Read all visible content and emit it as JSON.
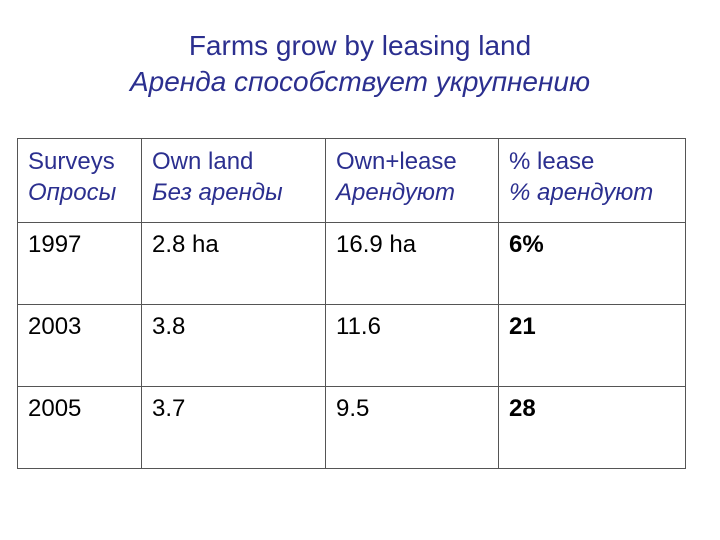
{
  "title": {
    "line1": "Farms grow by leasing land",
    "line2": "Аренда способствует укрупнению"
  },
  "table": {
    "headers": [
      {
        "en": "Surveys",
        "ru": "Опросы"
      },
      {
        "en": "Own land",
        "ru": "Без аренды"
      },
      {
        "en": "Own+lease",
        "ru": "Арендуют"
      },
      {
        "en": "% lease",
        "ru": "% арендуют"
      }
    ],
    "rows": [
      [
        "1997",
        "2.8 ha",
        "16.9 ha",
        "6%"
      ],
      [
        "2003",
        "3.8",
        "11.6",
        "21"
      ],
      [
        "2005",
        "3.7",
        "9.5",
        "28"
      ]
    ]
  },
  "colors": {
    "title_text": "#2b2f8f",
    "header_text": "#2b2f8f",
    "body_text": "#000000",
    "border": "#555555"
  }
}
